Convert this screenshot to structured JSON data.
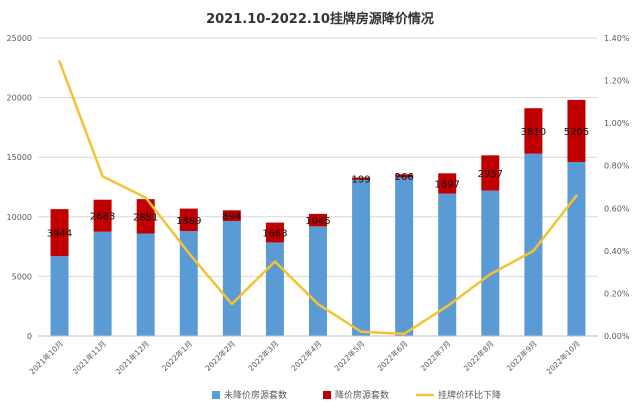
{
  "chart_data": {
    "type": "bar",
    "title": "2021.10-2022.10挂牌房源降价情况",
    "categories": [
      "2021年10月",
      "2021年11月",
      "2021年12月",
      "2022年1月",
      "2022年2月",
      "2022年3月",
      "2022年4月",
      "2022年5月",
      "2022年6月",
      "2022年7月",
      "2022年8月",
      "2022年9月",
      "2022年10月"
    ],
    "series": [
      {
        "name": "未降价房源套数",
        "kind": "bar",
        "axis": "left",
        "color": "#5b9bd5",
        "values": [
          6700,
          8750,
          8600,
          8800,
          9650,
          7850,
          9200,
          13100,
          13300,
          11950,
          12200,
          15300,
          14600
        ]
      },
      {
        "name": "降价房源套数",
        "kind": "bar",
        "axis": "left",
        "color": "#c00000",
        "values": [
          3944,
          2683,
          2881,
          1889,
          894,
          1663,
          1045,
          199,
          266,
          1697,
          2957,
          3810,
          5205
        ]
      },
      {
        "name": "挂牌价环比下降",
        "kind": "line",
        "axis": "right",
        "color": "#f5c230",
        "values": [
          1.29,
          0.75,
          0.65,
          0.39,
          0.15,
          0.35,
          0.15,
          0.02,
          0.01,
          0.14,
          0.29,
          0.4,
          0.66
        ]
      }
    ],
    "data_labels": [
      "3944",
      "2683",
      "2881",
      "1889",
      "894",
      "1663",
      "1045",
      "199",
      "266",
      "1697",
      "2957",
      "3810",
      "5205"
    ],
    "y_left": {
      "ticks": [
        "0",
        "5000",
        "10000",
        "15000",
        "20000",
        "25000"
      ],
      "range": [
        0,
        25000
      ]
    },
    "y_right": {
      "ticks": [
        "0.00%",
        "0.20%",
        "0.40%",
        "0.60%",
        "0.80%",
        "1.00%",
        "1.20%",
        "1.40%"
      ],
      "range": [
        0,
        1.4
      ]
    },
    "grid": true,
    "legend_position": "bottom",
    "stacked": true
  }
}
